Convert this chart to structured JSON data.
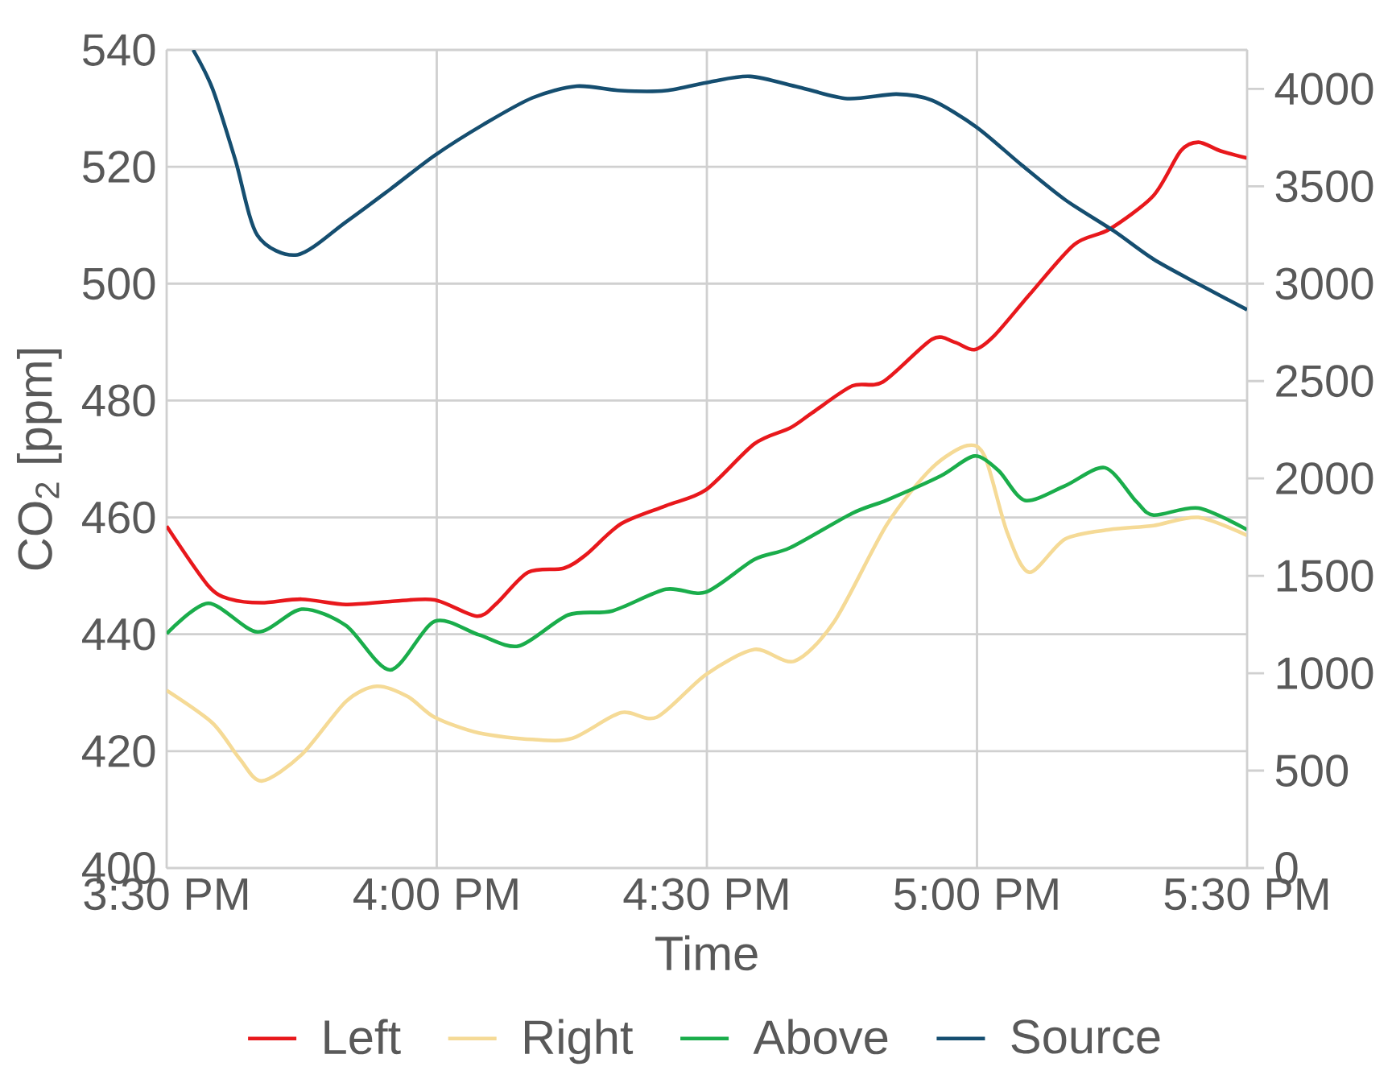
{
  "chart_data": {
    "type": "line",
    "xlabel": "Time",
    "ylabel": "CO$_{2}$ [ppm]",
    "xlim": [
      15.5,
      17.5
    ],
    "xticks": [
      {
        "value": 15.5,
        "label": "3:30 PM"
      },
      {
        "value": 16.0,
        "label": "4:00 PM"
      },
      {
        "value": 16.5,
        "label": "4:30 PM"
      },
      {
        "value": 17.0,
        "label": "5:00 PM"
      },
      {
        "value": 17.5,
        "label": "5:30 PM"
      }
    ],
    "ylim": [
      400,
      540
    ],
    "yticks": [
      400,
      420,
      440,
      460,
      480,
      500,
      520,
      540
    ],
    "y2lim": [
      0,
      4200
    ],
    "y2ticks": [
      0,
      500,
      1000,
      1500,
      2000,
      2500,
      3000,
      3500,
      4000
    ],
    "grid": true,
    "legend": "bottom",
    "marker": "none",
    "line_style": "solid",
    "series": [
      {
        "name": "Left",
        "color": "#e8181c",
        "x": [
          15.5,
          15.577,
          15.618,
          15.676,
          15.75,
          15.832,
          15.914,
          15.996,
          16.074,
          16.111,
          16.169,
          16.235,
          16.276,
          16.341,
          16.424,
          16.498,
          16.588,
          16.654,
          16.695,
          16.769,
          16.826,
          16.917,
          16.958,
          16.995,
          17.032,
          17.097,
          17.18,
          17.245,
          17.327,
          17.377,
          17.41,
          17.451,
          17.5
        ],
        "values": [
          458.5,
          448.3,
          446.0,
          445.4,
          446.0,
          445.1,
          445.6,
          445.9,
          443.1,
          445.3,
          450.6,
          451.3,
          453.6,
          458.9,
          462.0,
          464.7,
          472.6,
          475.3,
          477.9,
          482.5,
          483.2,
          490.5,
          490.0,
          488.7,
          491.1,
          498.1,
          506.7,
          509.3,
          515.1,
          522.7,
          524.2,
          522.7,
          521.5
        ]
      },
      {
        "name": "Right",
        "color": "#f5da96",
        "x": [
          15.5,
          15.585,
          15.635,
          15.676,
          15.75,
          15.832,
          15.889,
          15.947,
          15.996,
          16.078,
          16.177,
          16.251,
          16.341,
          16.407,
          16.498,
          16.588,
          16.662,
          16.736,
          16.834,
          16.917,
          16.982,
          17.015,
          17.056,
          17.097,
          17.163,
          17.245,
          17.327,
          17.41,
          17.5
        ],
        "values": [
          430.4,
          424.8,
          418.7,
          414.9,
          419.4,
          428.5,
          431.1,
          429.3,
          425.8,
          423.1,
          422.0,
          422.2,
          426.6,
          425.8,
          433.1,
          437.4,
          435.4,
          442.2,
          458.9,
          468.5,
          472.3,
          470.3,
          457.4,
          450.6,
          456.3,
          457.9,
          458.6,
          460.0,
          456.9
        ]
      },
      {
        "name": "Above",
        "color": "#1aad4b",
        "x": [
          15.5,
          15.577,
          15.668,
          15.75,
          15.832,
          15.914,
          15.996,
          16.078,
          16.152,
          16.243,
          16.325,
          16.424,
          16.498,
          16.588,
          16.654,
          16.769,
          16.834,
          16.933,
          16.995,
          17.04,
          17.089,
          17.163,
          17.237,
          17.295,
          17.327,
          17.41,
          17.5
        ],
        "values": [
          440.1,
          445.3,
          440.4,
          444.3,
          441.5,
          433.9,
          442.2,
          439.9,
          438.0,
          443.3,
          444.0,
          447.7,
          447.2,
          452.8,
          454.8,
          460.7,
          463.0,
          467.1,
          470.5,
          468.0,
          462.9,
          465.4,
          468.5,
          462.7,
          460.4,
          461.6,
          457.9
        ]
      },
      {
        "name": "Source",
        "color": "#154e70",
        "axis": "y2",
        "x": [
          15.549,
          15.585,
          15.627,
          15.668,
          15.742,
          15.832,
          15.914,
          15.996,
          16.087,
          16.177,
          16.259,
          16.341,
          16.424,
          16.506,
          16.58,
          16.67,
          16.76,
          16.851,
          16.917,
          16.999,
          17.081,
          17.163,
          17.253,
          17.327,
          17.41,
          17.5
        ],
        "values": [
          4200,
          4000,
          3636,
          3248,
          3148,
          3317,
          3485,
          3658,
          3818,
          3954,
          4014,
          3991,
          3991,
          4036,
          4064,
          4009,
          3950,
          3973,
          3941,
          3804,
          3613,
          3431,
          3271,
          3125,
          2998,
          2866
        ]
      }
    ]
  }
}
